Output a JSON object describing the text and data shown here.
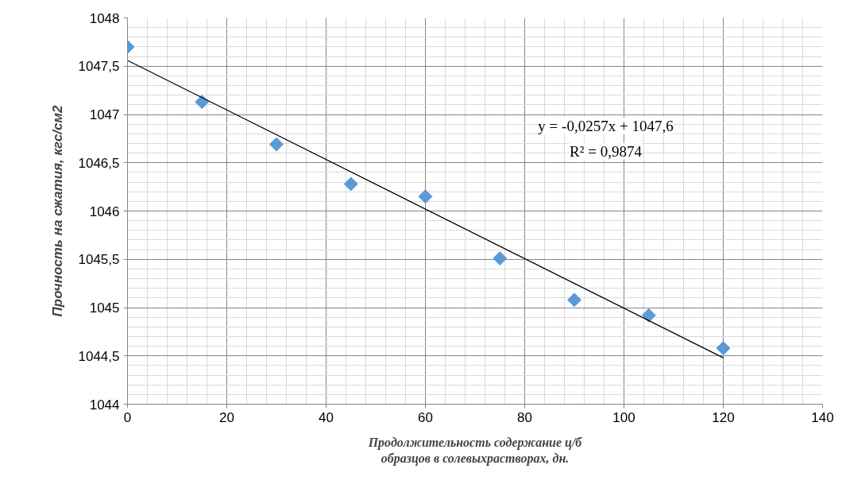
{
  "chart_data": {
    "type": "scatter",
    "xlabel": "Продолжительность содержание ц/б образцов в солевыхрастворах, дн.",
    "ylabel": "Прочность на сжатия, кгс/см2",
    "x": [
      0,
      15,
      30,
      45,
      60,
      75,
      90,
      105,
      120
    ],
    "series": [
      {
        "color": "#5b9bd5",
        "marker": "diamond",
        "values": [
          1047.7,
          1047.13,
          1046.69,
          1046.28,
          1046.15,
          1045.51,
          1045.08,
          1044.92,
          1044.58
        ]
      },
      {
        "type": "line",
        "color": "#000000",
        "x": [
          0,
          120
        ],
        "values": [
          1047.56,
          1044.48
        ],
        "line_style": "solid"
      }
    ],
    "annotations": [
      "y = -0,0257x + 1047,6",
      "R² = 0,9874"
    ],
    "xlim": [
      0,
      140
    ],
    "xticks": [
      0,
      20,
      40,
      60,
      80,
      100,
      120,
      140
    ],
    "ylim": [
      1044,
      1048
    ],
    "yticks": [
      1044,
      {
        "value": 1044.5,
        "label": "1044,5"
      },
      1045,
      {
        "value": 1045.5,
        "label": "1045,5"
      },
      1046,
      {
        "value": 1046.5,
        "label": "1046,5"
      },
      1047,
      {
        "value": 1047.5,
        "label": "1047,5"
      },
      1048
    ],
    "grid": true
  }
}
